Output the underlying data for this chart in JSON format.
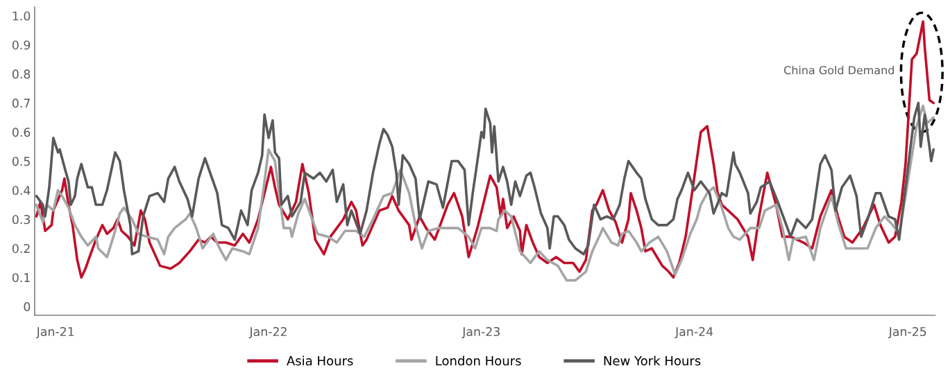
{
  "chart_data": {
    "type": "line",
    "xlim": [
      "2020-11-26",
      "2025-02-17"
    ],
    "xticks": [
      {
        "value": "2021-01-01",
        "label": "Jan-21"
      },
      {
        "value": "2022-01-01",
        "label": "Jan-22"
      },
      {
        "value": "2023-01-01",
        "label": "Jan-23"
      },
      {
        "value": "2024-01-01",
        "label": "Jan-24"
      },
      {
        "value": "2025-01-01",
        "label": "Jan-25"
      }
    ],
    "ylim": [
      -0.03,
      1.03
    ],
    "yticks": [
      0,
      0.1,
      0.2,
      0.3,
      0.4,
      0.5,
      0.6,
      0.7,
      0.8,
      0.9,
      {
        "value": 1.0,
        "label": "1.0"
      }
    ],
    "grid": false,
    "legend": "bottom",
    "marker": "none",
    "line_style": "solid",
    "annotations": [
      "China Gold Demand"
    ],
    "series": [
      {
        "name": "Asia Hours",
        "color": "#c0102a",
        "x": [
          "2020-11-29",
          "2020-12-06",
          "2020-12-14",
          "2020-12-25",
          "2020-12-28",
          "2021-01-12",
          "2021-01-16",
          "2021-01-23",
          "2021-01-30",
          "2021-02-07",
          "2021-02-14",
          "2021-02-21",
          "2021-02-28",
          "2021-03-11",
          "2021-03-22",
          "2021-03-30",
          "2021-04-10",
          "2021-04-17",
          "2021-04-24",
          "2021-05-05",
          "2021-05-16",
          "2021-05-27",
          "2021-06-03",
          "2021-06-11",
          "2021-06-29",
          "2021-07-17",
          "2021-08-01",
          "2021-08-19",
          "2021-09-03",
          "2021-09-14",
          "2021-09-24",
          "2021-10-05",
          "2021-10-20",
          "2021-11-04",
          "2021-11-18",
          "2021-11-29",
          "2021-12-14",
          "2022-01-05",
          "2022-01-12",
          "2022-01-19",
          "2022-02-03",
          "2022-02-17",
          "2022-02-28",
          "2022-03-11",
          "2022-03-22",
          "2022-04-06",
          "2022-04-17",
          "2022-04-28",
          "2022-05-09",
          "2022-05-23",
          "2022-05-31",
          "2022-06-11",
          "2022-06-18",
          "2022-07-10",
          "2022-07-24",
          "2022-08-01",
          "2022-08-12",
          "2022-08-30",
          "2022-09-03",
          "2022-09-17",
          "2022-09-28",
          "2022-10-13",
          "2022-11-04",
          "2022-11-15",
          "2022-11-29",
          "2022-12-10",
          "2022-12-25",
          "2023-01-05",
          "2023-01-16",
          "2023-01-27",
          "2023-02-03",
          "2023-02-07",
          "2023-02-14",
          "2023-02-25",
          "2023-03-08",
          "2023-03-11",
          "2023-03-19",
          "2023-03-30",
          "2023-04-10",
          "2023-04-24",
          "2023-05-09",
          "2023-05-23",
          "2023-06-07",
          "2023-06-18",
          "2023-06-29",
          "2023-07-10",
          "2023-07-17",
          "2023-07-28",
          "2023-08-08",
          "2023-08-19",
          "2023-08-30",
          "2023-09-10",
          "2023-09-14",
          "2023-09-24",
          "2023-10-02",
          "2023-10-09",
          "2023-10-20",
          "2023-11-07",
          "2023-11-18",
          "2023-11-26",
          "2023-12-06",
          "2023-12-17",
          "2023-12-28",
          "2024-01-12",
          "2024-01-23",
          "2024-02-03",
          "2024-02-10",
          "2024-02-17",
          "2024-02-28",
          "2024-03-15",
          "2024-04-02",
          "2024-04-10",
          "2024-04-21",
          "2024-05-05",
          "2024-05-20",
          "2024-05-31",
          "2024-06-14",
          "2024-07-06",
          "2024-07-21",
          "2024-08-04",
          "2024-08-23",
          "2024-09-03",
          "2024-09-14",
          "2024-09-28",
          "2024-10-16",
          "2024-11-04",
          "2024-11-15",
          "2024-11-29",
          "2024-12-10",
          "2024-12-21",
          "2024-12-28",
          "2025-01-08",
          "2025-01-16",
          "2025-01-27",
          "2025-01-30",
          "2025-02-07",
          "2025-02-14"
        ],
        "values": [
          0.31,
          0.36,
          0.26,
          0.28,
          0.33,
          0.4,
          0.44,
          0.35,
          0.28,
          0.16,
          0.1,
          0.13,
          0.17,
          0.23,
          0.28,
          0.25,
          0.27,
          0.3,
          0.26,
          0.24,
          0.21,
          0.33,
          0.3,
          0.22,
          0.14,
          0.13,
          0.15,
          0.19,
          0.23,
          0.22,
          0.24,
          0.22,
          0.22,
          0.21,
          0.25,
          0.22,
          0.3,
          0.48,
          0.41,
          0.35,
          0.3,
          0.36,
          0.49,
          0.39,
          0.23,
          0.18,
          0.24,
          0.27,
          0.3,
          0.36,
          0.33,
          0.21,
          0.23,
          0.33,
          0.34,
          0.38,
          0.33,
          0.28,
          0.23,
          0.31,
          0.27,
          0.23,
          0.35,
          0.39,
          0.31,
          0.17,
          0.27,
          0.36,
          0.45,
          0.41,
          0.31,
          0.37,
          0.27,
          0.31,
          0.26,
          0.18,
          0.28,
          0.22,
          0.17,
          0.15,
          0.17,
          0.15,
          0.15,
          0.12,
          0.16,
          0.33,
          0.35,
          0.4,
          0.33,
          0.29,
          0.22,
          0.3,
          0.39,
          0.33,
          0.27,
          0.19,
          0.2,
          0.14,
          0.12,
          0.1,
          0.15,
          0.24,
          0.39,
          0.6,
          0.62,
          0.49,
          0.39,
          0.35,
          0.33,
          0.3,
          0.24,
          0.16,
          0.31,
          0.46,
          0.35,
          0.24,
          0.24,
          0.22,
          0.2,
          0.31,
          0.4,
          0.31,
          0.24,
          0.22,
          0.27,
          0.35,
          0.28,
          0.22,
          0.24,
          0.36,
          0.49,
          0.85,
          0.87,
          0.98,
          0.89,
          0.71,
          0.7
        ]
      },
      {
        "name": "London Hours",
        "color": "#a5a5a5",
        "x": [
          "2020-11-29",
          "2020-12-10",
          "2020-12-17",
          "2020-12-28",
          "2021-01-05",
          "2021-01-12",
          "2021-01-23",
          "2021-02-03",
          "2021-02-14",
          "2021-02-25",
          "2021-03-11",
          "2021-03-15",
          "2021-03-30",
          "2021-04-10",
          "2021-04-21",
          "2021-04-28",
          "2021-05-12",
          "2021-05-23",
          "2021-06-07",
          "2021-06-25",
          "2021-07-06",
          "2021-07-13",
          "2021-07-24",
          "2021-08-12",
          "2021-08-19",
          "2021-08-30",
          "2021-09-10",
          "2021-09-28",
          "2021-10-09",
          "2021-10-20",
          "2021-10-31",
          "2021-11-18",
          "2021-11-29",
          "2021-12-14",
          "2021-12-25",
          "2022-01-01",
          "2022-01-12",
          "2022-01-19",
          "2022-01-27",
          "2022-02-07",
          "2022-02-10",
          "2022-02-21",
          "2022-03-04",
          "2022-03-15",
          "2022-03-26",
          "2022-04-13",
          "2022-04-28",
          "2022-05-12",
          "2022-05-31",
          "2022-06-14",
          "2022-06-29",
          "2022-07-17",
          "2022-08-01",
          "2022-08-15",
          "2022-08-30",
          "2022-09-10",
          "2022-09-21",
          "2022-10-02",
          "2022-10-20",
          "2022-11-07",
          "2022-11-22",
          "2022-12-10",
          "2022-12-21",
          "2023-01-01",
          "2023-01-16",
          "2023-01-27",
          "2023-01-30",
          "2023-02-10",
          "2023-02-21",
          "2023-03-08",
          "2023-03-26",
          "2023-04-10",
          "2023-04-24",
          "2023-05-12",
          "2023-05-27",
          "2023-06-11",
          "2023-06-29",
          "2023-07-10",
          "2023-07-24",
          "2023-07-28",
          "2023-08-12",
          "2023-08-23",
          "2023-08-30",
          "2023-09-10",
          "2023-09-24",
          "2023-10-02",
          "2023-10-16",
          "2023-10-31",
          "2023-11-15",
          "2023-11-29",
          "2023-12-10",
          "2023-12-25",
          "2024-01-05",
          "2024-01-12",
          "2024-01-23",
          "2024-02-03",
          "2024-02-17",
          "2024-02-28",
          "2024-03-08",
          "2024-03-19",
          "2024-04-06",
          "2024-04-21",
          "2024-05-01",
          "2024-05-20",
          "2024-05-31",
          "2024-06-11",
          "2024-06-18",
          "2024-07-10",
          "2024-07-24",
          "2024-08-04",
          "2024-08-23",
          "2024-09-03",
          "2024-09-17",
          "2024-10-05",
          "2024-10-24",
          "2024-11-07",
          "2024-11-22",
          "2024-12-06",
          "2024-12-17",
          "2024-12-28",
          "2025-01-08",
          "2025-01-16",
          "2025-01-27",
          "2025-02-03",
          "2025-02-14"
        ],
        "values": [
          0.35,
          0.29,
          0.35,
          0.33,
          0.4,
          0.38,
          0.34,
          0.28,
          0.24,
          0.21,
          0.24,
          0.2,
          0.17,
          0.24,
          0.32,
          0.34,
          0.3,
          0.25,
          0.24,
          0.23,
          0.18,
          0.24,
          0.27,
          0.3,
          0.32,
          0.27,
          0.2,
          0.25,
          0.2,
          0.16,
          0.2,
          0.19,
          0.18,
          0.27,
          0.43,
          0.54,
          0.5,
          0.39,
          0.27,
          0.27,
          0.24,
          0.32,
          0.37,
          0.31,
          0.25,
          0.24,
          0.22,
          0.26,
          0.26,
          0.24,
          0.3,
          0.38,
          0.39,
          0.47,
          0.39,
          0.28,
          0.2,
          0.26,
          0.27,
          0.27,
          0.27,
          0.24,
          0.2,
          0.27,
          0.27,
          0.26,
          0.3,
          0.33,
          0.31,
          0.19,
          0.15,
          0.19,
          0.16,
          0.14,
          0.09,
          0.09,
          0.12,
          0.19,
          0.25,
          0.27,
          0.22,
          0.21,
          0.25,
          0.26,
          0.22,
          0.19,
          0.22,
          0.24,
          0.19,
          0.11,
          0.16,
          0.25,
          0.3,
          0.35,
          0.39,
          0.41,
          0.34,
          0.27,
          0.24,
          0.23,
          0.27,
          0.27,
          0.33,
          0.35,
          0.27,
          0.16,
          0.23,
          0.24,
          0.16,
          0.27,
          0.38,
          0.29,
          0.2,
          0.2,
          0.2,
          0.27,
          0.31,
          0.28,
          0.25,
          0.38,
          0.52,
          0.62,
          0.69,
          0.63,
          0.65
        ]
      },
      {
        "name": "New York Hours",
        "color": "#595959",
        "x": [
          "2020-11-29",
          "2020-12-10",
          "2020-12-14",
          "2020-12-21",
          "2020-12-28",
          "2021-01-05",
          "2021-01-08",
          "2021-01-16",
          "2021-01-23",
          "2021-01-27",
          "2021-02-03",
          "2021-02-07",
          "2021-02-14",
          "2021-02-25",
          "2021-03-04",
          "2021-03-11",
          "2021-03-22",
          "2021-03-30",
          "2021-04-13",
          "2021-04-21",
          "2021-04-28",
          "2021-05-09",
          "2021-05-12",
          "2021-05-23",
          "2021-05-31",
          "2021-06-11",
          "2021-06-25",
          "2021-07-06",
          "2021-07-13",
          "2021-07-24",
          "2021-08-01",
          "2021-08-15",
          "2021-08-23",
          "2021-09-03",
          "2021-09-14",
          "2021-09-28",
          "2021-10-05",
          "2021-10-13",
          "2021-10-24",
          "2021-11-04",
          "2021-11-15",
          "2021-11-26",
          "2021-12-03",
          "2021-12-14",
          "2021-12-21",
          "2021-12-25",
          "2022-01-01",
          "2022-01-08",
          "2022-01-12",
          "2022-01-19",
          "2022-01-23",
          "2022-02-03",
          "2022-02-10",
          "2022-02-25",
          "2022-03-04",
          "2022-03-19",
          "2022-03-30",
          "2022-04-10",
          "2022-04-21",
          "2022-04-28",
          "2022-05-09",
          "2022-05-16",
          "2022-05-23",
          "2022-06-07",
          "2022-06-18",
          "2022-06-29",
          "2022-07-10",
          "2022-07-17",
          "2022-07-24",
          "2022-08-01",
          "2022-08-08",
          "2022-08-12",
          "2022-08-19",
          "2022-08-30",
          "2022-09-10",
          "2022-09-17",
          "2022-10-02",
          "2022-10-16",
          "2022-10-27",
          "2022-11-11",
          "2022-11-22",
          "2022-12-03",
          "2022-12-10",
          "2022-12-17",
          "2022-12-25",
          "2023-01-01",
          "2023-01-05",
          "2023-01-08",
          "2023-01-16",
          "2023-01-19",
          "2023-01-23",
          "2023-01-30",
          "2023-02-07",
          "2023-02-14",
          "2023-02-21",
          "2023-02-28",
          "2023-03-08",
          "2023-03-19",
          "2023-03-26",
          "2023-04-02",
          "2023-04-13",
          "2023-04-24",
          "2023-04-28",
          "2023-05-05",
          "2023-05-12",
          "2023-05-23",
          "2023-05-31",
          "2023-06-11",
          "2023-06-25",
          "2023-07-03",
          "2023-07-13",
          "2023-07-24",
          "2023-08-04",
          "2023-08-15",
          "2023-08-26",
          "2023-09-03",
          "2023-09-10",
          "2023-09-24",
          "2023-10-02",
          "2023-10-09",
          "2023-10-20",
          "2023-10-31",
          "2023-11-15",
          "2023-11-26",
          "2023-12-03",
          "2023-12-10",
          "2023-12-21",
          "2024-01-01",
          "2024-01-12",
          "2024-01-27",
          "2024-02-03",
          "2024-02-17",
          "2024-02-25",
          "2024-03-08",
          "2024-03-11",
          "2024-03-19",
          "2024-04-02",
          "2024-04-06",
          "2024-04-17",
          "2024-04-24",
          "2024-05-09",
          "2024-05-23",
          "2024-06-03",
          "2024-06-14",
          "2024-06-25",
          "2024-07-10",
          "2024-07-21",
          "2024-08-04",
          "2024-08-12",
          "2024-08-23",
          "2024-08-30",
          "2024-09-10",
          "2024-09-24",
          "2024-10-05",
          "2024-10-13",
          "2024-10-24",
          "2024-11-07",
          "2024-11-15",
          "2024-11-29",
          "2024-12-10",
          "2024-12-17",
          "2024-12-25",
          "2025-01-05",
          "2025-01-12",
          "2025-01-19",
          "2025-01-23",
          "2025-01-30",
          "2025-02-07",
          "2025-02-10",
          "2025-02-14"
        ],
        "values": [
          0.38,
          0.35,
          0.31,
          0.41,
          0.58,
          0.53,
          0.54,
          0.48,
          0.43,
          0.35,
          0.38,
          0.44,
          0.49,
          0.41,
          0.41,
          0.35,
          0.35,
          0.4,
          0.53,
          0.5,
          0.4,
          0.28,
          0.18,
          0.19,
          0.31,
          0.38,
          0.39,
          0.36,
          0.44,
          0.48,
          0.43,
          0.37,
          0.31,
          0.44,
          0.51,
          0.43,
          0.39,
          0.28,
          0.27,
          0.23,
          0.33,
          0.28,
          0.4,
          0.46,
          0.52,
          0.66,
          0.58,
          0.64,
          0.53,
          0.51,
          0.35,
          0.38,
          0.31,
          0.36,
          0.46,
          0.44,
          0.46,
          0.43,
          0.47,
          0.36,
          0.42,
          0.28,
          0.33,
          0.25,
          0.33,
          0.46,
          0.56,
          0.61,
          0.59,
          0.55,
          0.46,
          0.35,
          0.52,
          0.49,
          0.44,
          0.3,
          0.43,
          0.42,
          0.34,
          0.5,
          0.5,
          0.47,
          0.28,
          0.39,
          0.5,
          0.6,
          0.58,
          0.68,
          0.63,
          0.53,
          0.62,
          0.43,
          0.48,
          0.43,
          0.35,
          0.43,
          0.38,
          0.45,
          0.46,
          0.41,
          0.32,
          0.27,
          0.2,
          0.31,
          0.31,
          0.28,
          0.23,
          0.2,
          0.18,
          0.21,
          0.35,
          0.3,
          0.31,
          0.3,
          0.35,
          0.44,
          0.5,
          0.46,
          0.44,
          0.37,
          0.3,
          0.28,
          0.28,
          0.3,
          0.37,
          0.4,
          0.46,
          0.4,
          0.43,
          0.39,
          0.32,
          0.39,
          0.38,
          0.53,
          0.49,
          0.46,
          0.39,
          0.32,
          0.36,
          0.41,
          0.43,
          0.36,
          0.3,
          0.24,
          0.3,
          0.27,
          0.3,
          0.49,
          0.52,
          0.47,
          0.33,
          0.41,
          0.45,
          0.38,
          0.24,
          0.3,
          0.39,
          0.39,
          0.31,
          0.3,
          0.23,
          0.36,
          0.54,
          0.65,
          0.7,
          0.55,
          0.66,
          0.55,
          0.5,
          0.54
        ]
      }
    ]
  }
}
